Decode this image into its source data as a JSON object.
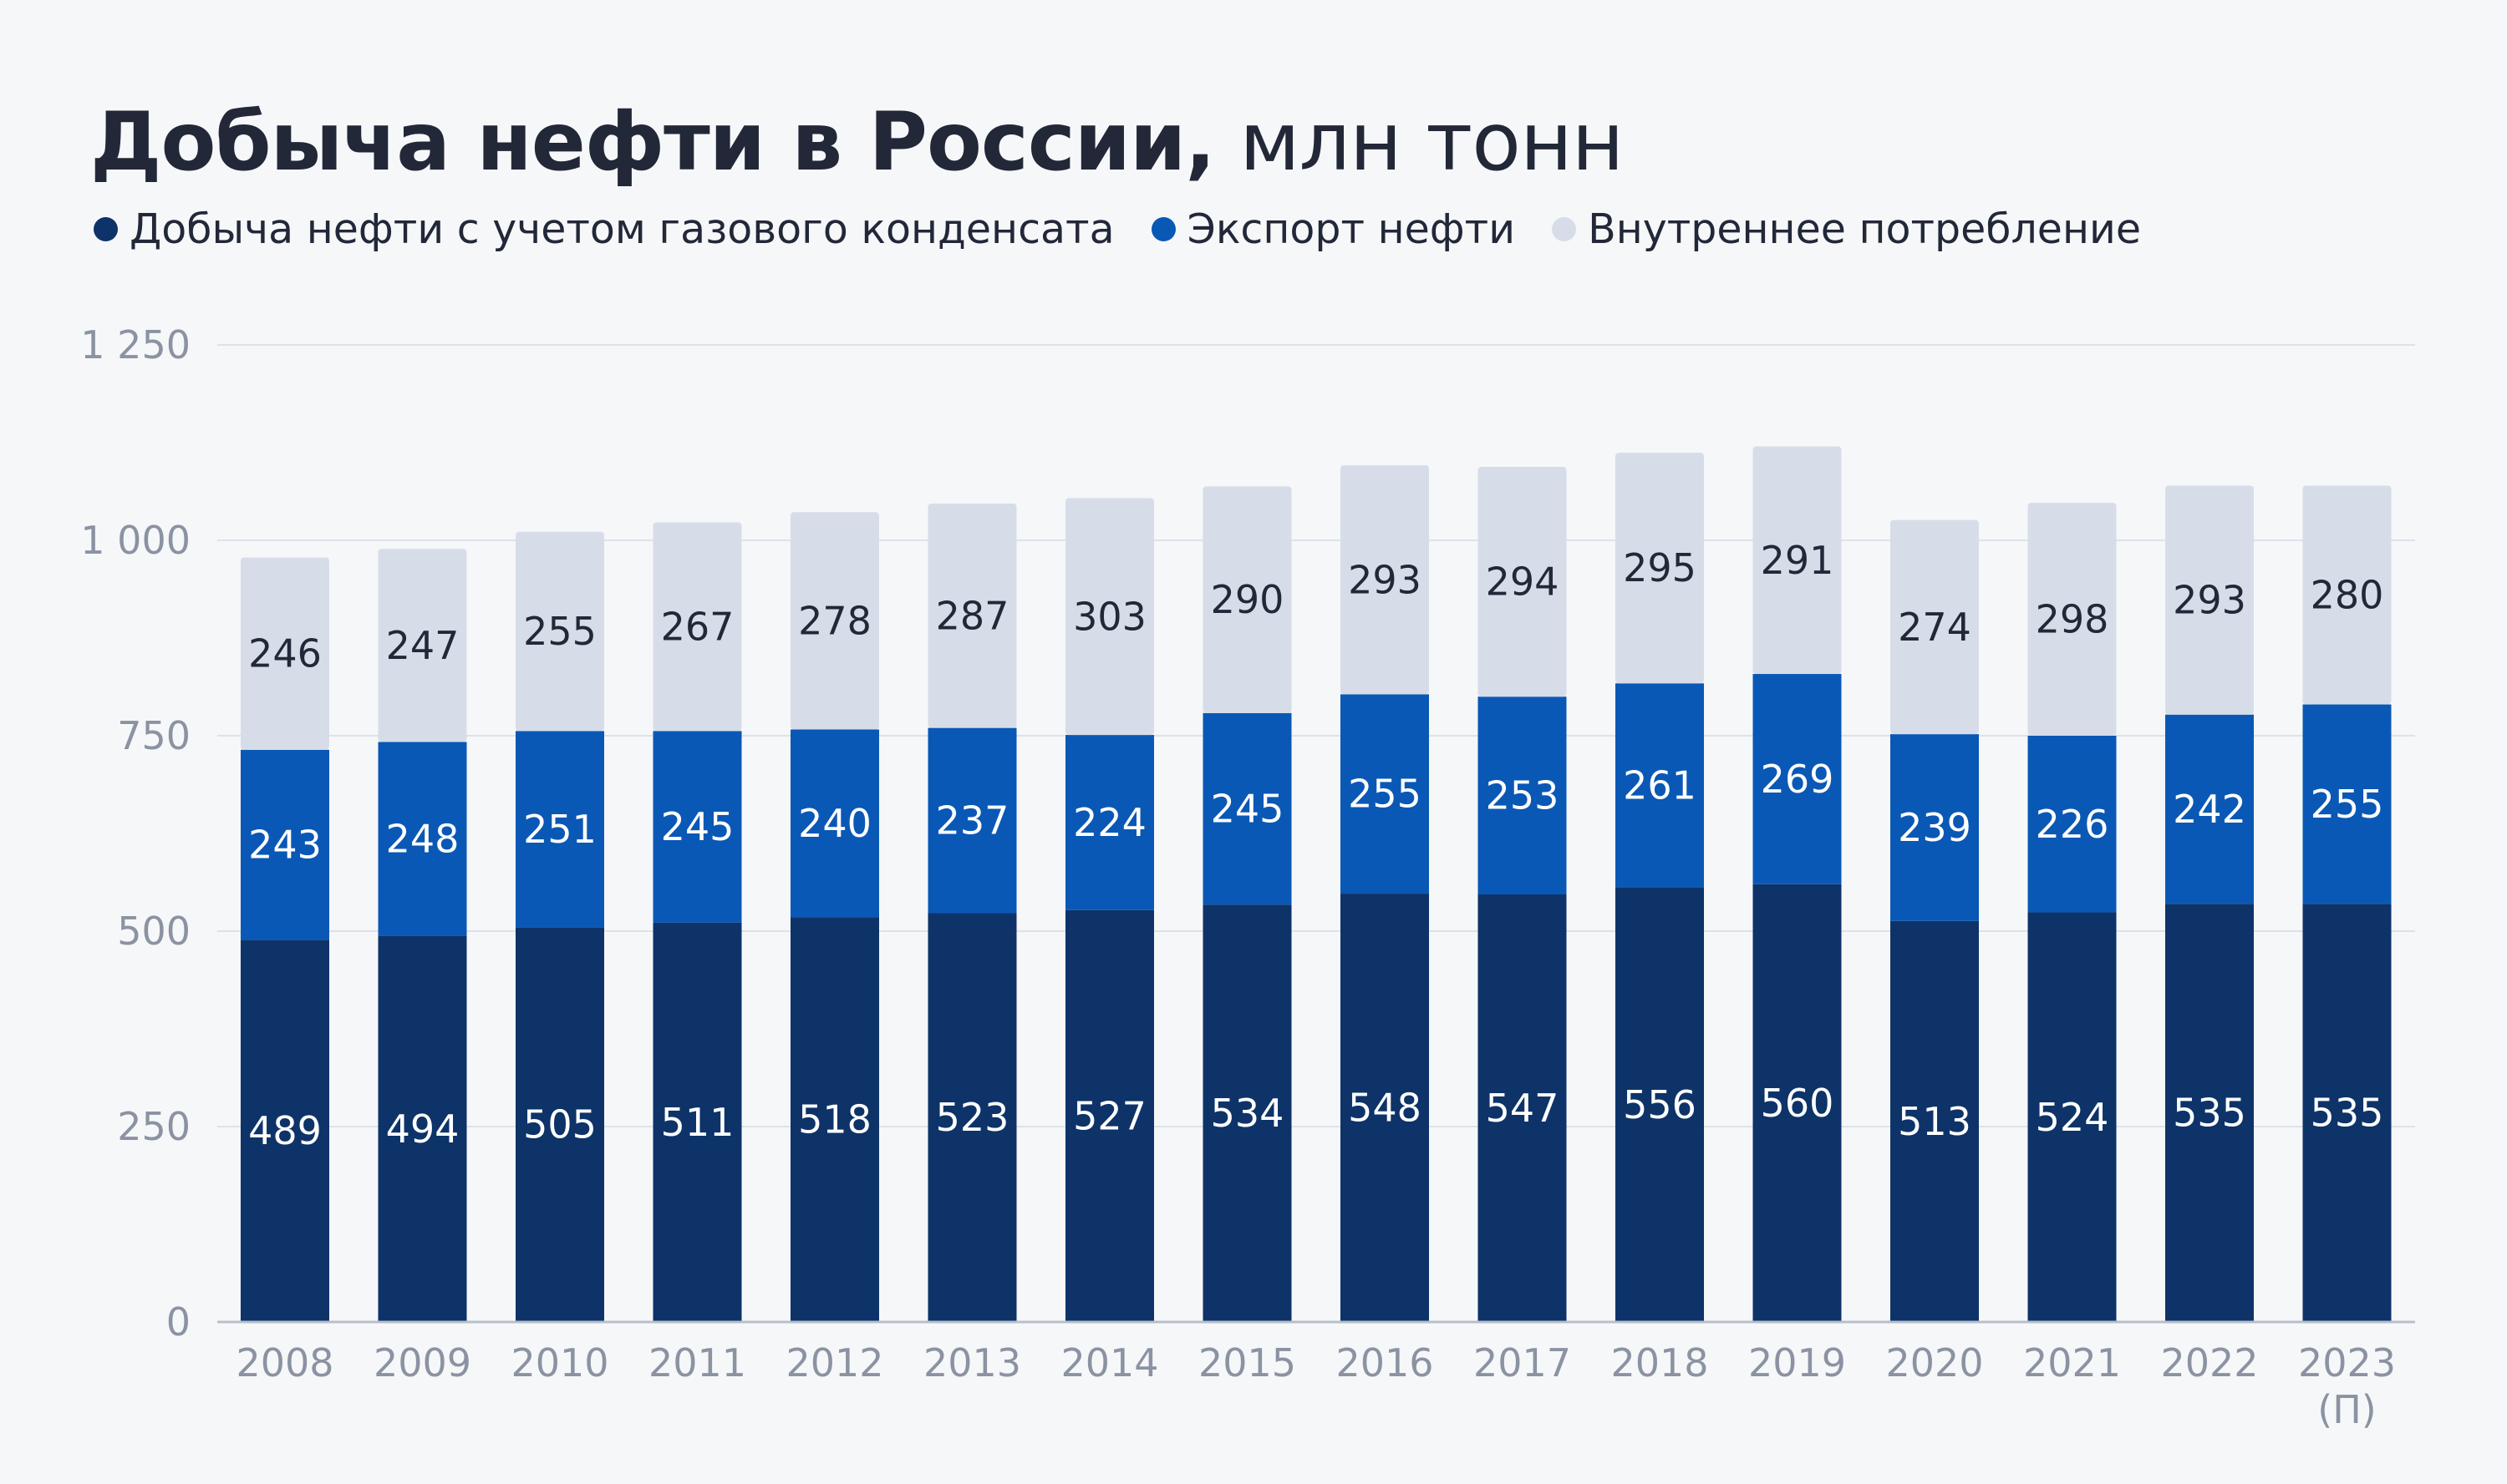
{
  "title": {
    "main": "Добыча нефти в России,",
    "unit": "млн тонн"
  },
  "legend": [
    {
      "label": "Добыча нефти с учетом газового конденсата",
      "color": "#0d3369"
    },
    {
      "label": "Экспорт нефти",
      "color": "#0a58b6"
    },
    {
      "label": "Внутреннее потребление",
      "color": "#d7dde8"
    }
  ],
  "chart_data": {
    "type": "bar",
    "stacked": true,
    "title": "Добыча нефти в России, млн тонн",
    "xlabel": "",
    "ylabel": "",
    "ylim": [
      0,
      1250
    ],
    "yticks": [
      0,
      250,
      500,
      750,
      1000,
      1250
    ],
    "ytick_labels": [
      "0",
      "250",
      "500",
      "750",
      "1 000",
      "1 250"
    ],
    "grid": true,
    "categories": [
      "2008",
      "2009",
      "2010",
      "2011",
      "2012",
      "2013",
      "2014",
      "2015",
      "2016",
      "2017",
      "2018",
      "2019",
      "2020",
      "2021",
      "2022",
      "2023"
    ],
    "category_notes": {
      "2023": "(П)"
    },
    "series": [
      {
        "name": "Добыча нефти с учетом газового конденсата",
        "color": "#0d3369",
        "label_color": "#ffffff",
        "values": [
          489,
          494,
          505,
          511,
          518,
          523,
          527,
          534,
          548,
          547,
          556,
          560,
          513,
          524,
          535,
          535
        ]
      },
      {
        "name": "Экспорт нефти",
        "color": "#0a58b6",
        "label_color": "#ffffff",
        "values": [
          243,
          248,
          251,
          245,
          240,
          237,
          224,
          245,
          255,
          253,
          261,
          269,
          239,
          226,
          242,
          255
        ]
      },
      {
        "name": "Внутреннее потребление",
        "color": "#d7dde8",
        "label_color": "#222838",
        "values": [
          246,
          247,
          255,
          267,
          278,
          287,
          303,
          290,
          293,
          294,
          295,
          291,
          274,
          298,
          293,
          280
        ]
      }
    ]
  }
}
